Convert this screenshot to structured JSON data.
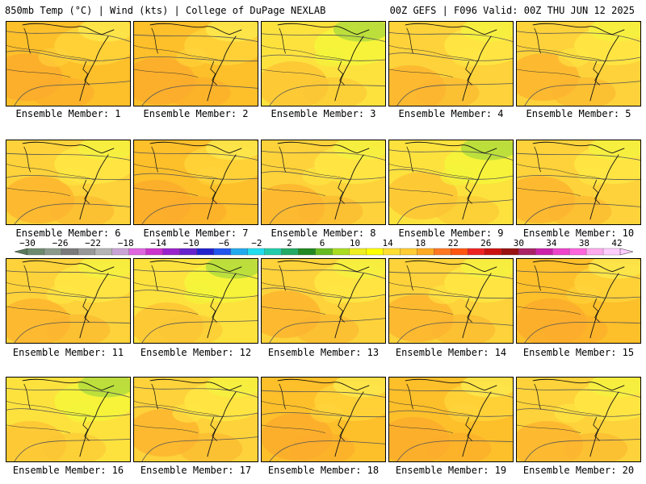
{
  "header": {
    "left": "850mb Temp (°C) | Wind (kts) | College of DuPage NEXLAB",
    "right": "00Z GEFS | F096 Valid: 00Z THU JUN 12 2025"
  },
  "member_label_prefix": "Ensemble Member: ",
  "members": [
    {
      "id": "1",
      "tone": "warm"
    },
    {
      "id": "2",
      "tone": "warm"
    },
    {
      "id": "3",
      "tone": "cool"
    },
    {
      "id": "4",
      "tone": "mid"
    },
    {
      "id": "5",
      "tone": "mid"
    },
    {
      "id": "6",
      "tone": "mid"
    },
    {
      "id": "7",
      "tone": "warm"
    },
    {
      "id": "8",
      "tone": "mid"
    },
    {
      "id": "9",
      "tone": "cool"
    },
    {
      "id": "10",
      "tone": "mid"
    },
    {
      "id": "11",
      "tone": "mid"
    },
    {
      "id": "12",
      "tone": "cool"
    },
    {
      "id": "13",
      "tone": "mid"
    },
    {
      "id": "14",
      "tone": "mid"
    },
    {
      "id": "15",
      "tone": "warm"
    },
    {
      "id": "16",
      "tone": "cool"
    },
    {
      "id": "17",
      "tone": "mid"
    },
    {
      "id": "18",
      "tone": "warm"
    },
    {
      "id": "19",
      "tone": "warm"
    },
    {
      "id": "20",
      "tone": "mid"
    }
  ],
  "colorbar": {
    "ticks": [
      "-30",
      "-26",
      "-22",
      "-18",
      "-14",
      "-10",
      "-6",
      "-2",
      "2",
      "6",
      "10",
      "14",
      "18",
      "22",
      "26",
      "30",
      "34",
      "38",
      "42"
    ],
    "colors": [
      "#6e8a6e",
      "#8c9a8c",
      "#7a7a7a",
      "#999999",
      "#b5b5b5",
      "#c9a3d6",
      "#e066e0",
      "#cc33cc",
      "#9a22cc",
      "#6622cc",
      "#2222cc",
      "#2255ee",
      "#22aaee",
      "#22ddee",
      "#22ccaa",
      "#22aa66",
      "#228822",
      "#66bb22",
      "#aadd22",
      "#eeee22",
      "#ffff00",
      "#ffdd33",
      "#ffcc33",
      "#ffaa22",
      "#ff7722",
      "#ff5511",
      "#ee2222",
      "#cc1111",
      "#991111",
      "#aa2266",
      "#cc22aa",
      "#ee44cc",
      "#ff66dd",
      "#ffaaee",
      "#ffccff"
    ]
  }
}
